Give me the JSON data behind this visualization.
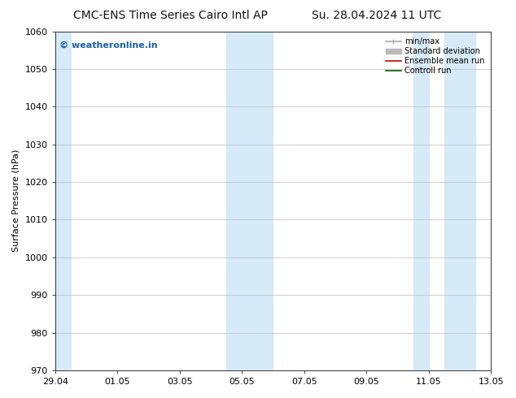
{
  "title_left": "CMC-ENS Time Series Cairo Intl AP",
  "title_right": "Su. 28.04.2024 11 UTC",
  "ylabel": "Surface Pressure (hPa)",
  "ylim": [
    970,
    1060
  ],
  "yticks": [
    970,
    980,
    990,
    1000,
    1010,
    1020,
    1030,
    1040,
    1050,
    1060
  ],
  "xtick_labels": [
    "29.04",
    "01.05",
    "03.05",
    "05.05",
    "07.05",
    "09.05",
    "11.05",
    "13.05"
  ],
  "xtick_positions": [
    0,
    2,
    4,
    6,
    8,
    10,
    12,
    14
  ],
  "x_total": 14,
  "shaded_bands": [
    {
      "x_start": 0.0,
      "x_end": 0.5,
      "color": "#d6eaf8"
    },
    {
      "x_start": 5.5,
      "x_end": 6.5,
      "color": "#d6eaf8"
    },
    {
      "x_start": 6.5,
      "x_end": 7.0,
      "color": "#d6eaf8"
    },
    {
      "x_start": 11.5,
      "x_end": 12.0,
      "color": "#d6eaf8"
    },
    {
      "x_start": 12.5,
      "x_end": 13.5,
      "color": "#d6eaf8"
    }
  ],
  "watermark_text": "© weatheronline.in",
  "watermark_color": "#1a5fa8",
  "legend_entries": [
    {
      "label": "min/max",
      "color": "#aaaaaa",
      "lw": 1.2
    },
    {
      "label": "Standard deviation",
      "color": "#bbbbbb",
      "lw": 6
    },
    {
      "label": "Ensemble mean run",
      "color": "#cc0000",
      "lw": 1.2
    },
    {
      "label": "Controll run",
      "color": "#006600",
      "lw": 1.2
    }
  ],
  "bg_color": "#ffffff",
  "plot_bg_color": "#ffffff",
  "grid_color": "#bbbbbb",
  "title_fontsize": 10,
  "ylabel_fontsize": 8,
  "tick_fontsize": 8,
  "legend_fontsize": 7,
  "watermark_fontsize": 8
}
